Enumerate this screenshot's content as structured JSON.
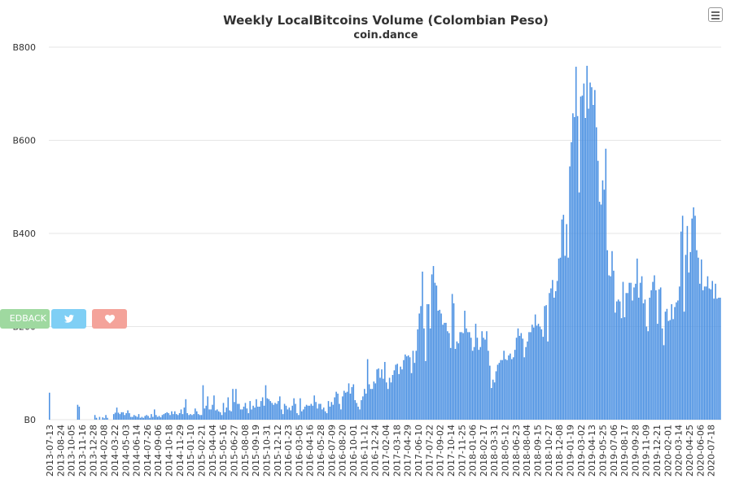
{
  "chart_data": {
    "type": "bar",
    "title": "Weekly LocalBitcoins Volume (Colombian Peso)",
    "subtitle": "coin.dance",
    "xlabel": "",
    "ylabel": "",
    "ylim": [
      0,
      800
    ],
    "yticks": [
      0,
      200,
      400,
      600,
      800
    ],
    "y_tick_labels": [
      "B0",
      "B200",
      "B400",
      "B600",
      "B800"
    ],
    "grid": true,
    "legend": "none",
    "bar_color": "#4a90e2",
    "x_tick_labels": [
      "2013-07-13",
      "2013-08-24",
      "2013-10-05",
      "2013-11-16",
      "2013-12-28",
      "2014-02-08",
      "2014-03-22",
      "2014-05-03",
      "2014-06-14",
      "2014-07-26",
      "2014-09-06",
      "2014-10-18",
      "2014-11-29",
      "2015-01-10",
      "2015-02-21",
      "2015-04-04",
      "2015-05-16",
      "2015-06-27",
      "2015-08-08",
      "2015-09-19",
      "2015-10-31",
      "2015-12-12",
      "2016-01-23",
      "2016-03-05",
      "2016-04-16",
      "2016-05-28",
      "2016-07-09",
      "2016-08-20",
      "2016-10-01",
      "2016-11-12",
      "2016-12-24",
      "2017-02-04",
      "2017-03-18",
      "2017-04-29",
      "2017-06-10",
      "2017-07-22",
      "2017-09-02",
      "2017-10-14",
      "2017-11-25",
      "2018-01-06",
      "2018-02-17",
      "2018-03-31",
      "2018-05-12",
      "2018-06-23",
      "2018-08-04",
      "2018-09-15",
      "2018-10-27",
      "2018-12-08",
      "2019-01-19",
      "2019-03-02",
      "2019-04-13",
      "2019-05-25",
      "2019-07-06",
      "2019-08-17",
      "2019-09-28",
      "2019-11-09",
      "2019-12-21",
      "2020-02-01",
      "2020-03-14",
      "2020-04-25",
      "2020-06-06",
      "2020-07-18"
    ],
    "values": [
      58,
      0,
      0,
      0,
      0,
      0,
      0,
      0,
      0,
      0,
      0,
      0,
      0,
      0,
      0,
      0,
      0,
      0,
      32,
      28,
      0,
      0,
      0,
      0,
      0,
      0,
      0,
      0,
      0,
      10,
      4,
      0,
      6,
      0,
      5,
      3,
      10,
      4,
      0,
      0,
      0,
      12,
      15,
      26,
      15,
      12,
      16,
      16,
      10,
      14,
      20,
      14,
      6,
      6,
      10,
      8,
      6,
      12,
      4,
      6,
      4,
      8,
      10,
      8,
      4,
      12,
      6,
      22,
      10,
      6,
      8,
      5,
      10,
      12,
      14,
      16,
      14,
      10,
      18,
      12,
      18,
      12,
      10,
      14,
      22,
      12,
      26,
      44,
      14,
      10,
      12,
      10,
      12,
      24,
      18,
      12,
      10,
      10,
      74,
      24,
      30,
      50,
      22,
      22,
      32,
      52,
      20,
      22,
      18,
      16,
      10,
      36,
      16,
      26,
      48,
      20,
      18,
      66,
      38,
      66,
      34,
      34,
      22,
      22,
      28,
      36,
      24,
      14,
      40,
      22,
      30,
      26,
      44,
      28,
      28,
      40,
      48,
      30,
      74,
      46,
      44,
      40,
      36,
      32,
      36,
      34,
      40,
      50,
      22,
      12,
      34,
      30,
      22,
      26,
      20,
      30,
      46,
      34,
      14,
      10,
      46,
      18,
      22,
      28,
      32,
      30,
      30,
      34,
      30,
      52,
      38,
      24,
      34,
      34,
      22,
      26,
      18,
      14,
      40,
      28,
      38,
      32,
      48,
      60,
      56,
      34,
      22,
      50,
      62,
      58,
      60,
      78,
      56,
      70,
      76,
      42,
      36,
      28,
      22,
      42,
      50,
      66,
      56,
      130,
      76,
      66,
      66,
      82,
      78,
      108,
      110,
      90,
      108,
      88,
      124,
      80,
      66,
      90,
      80,
      96,
      106,
      118,
      120,
      98,
      114,
      108,
      128,
      140,
      136,
      138,
      134,
      100,
      148,
      122,
      148,
      194,
      228,
      244,
      318,
      196,
      126,
      248,
      248,
      196,
      312,
      330,
      294,
      288,
      234,
      236,
      228,
      204,
      208,
      208,
      190,
      186,
      154,
      270,
      250,
      152,
      168,
      164,
      188,
      188,
      186,
      234,
      196,
      188,
      188,
      176,
      148,
      156,
      206,
      176,
      150,
      156,
      190,
      176,
      172,
      190,
      148,
      116,
      68,
      86,
      80,
      104,
      118,
      122,
      128,
      128,
      148,
      130,
      128,
      138,
      142,
      130,
      134,
      150,
      176,
      196,
      180,
      186,
      174,
      134,
      156,
      168,
      188,
      188,
      204,
      198,
      226,
      202,
      206,
      200,
      194,
      178,
      244,
      246,
      168,
      272,
      282,
      300,
      262,
      276,
      298,
      346,
      348,
      430,
      440,
      352,
      420,
      348,
      544,
      596,
      658,
      650,
      758,
      652,
      488,
      694,
      696,
      722,
      648,
      760,
      668,
      724,
      714,
      676,
      708,
      628,
      556,
      468,
      462,
      514,
      494,
      582,
      364,
      310,
      308,
      362,
      320,
      230,
      254,
      258,
      254,
      218,
      296,
      220,
      272,
      272,
      294,
      294,
      256,
      284,
      292,
      346,
      262,
      294,
      308,
      250,
      258,
      200,
      190,
      262,
      278,
      296,
      310,
      278,
      206,
      280,
      284,
      196,
      160,
      232,
      238,
      212,
      214,
      248,
      216,
      242,
      252,
      256,
      286,
      404,
      438,
      232,
      354,
      416,
      316,
      360,
      432,
      456,
      438,
      364,
      348,
      292,
      344,
      278,
      286,
      286,
      308,
      282,
      280,
      298,
      260,
      292,
      260,
      262,
      262
    ]
  }
}
